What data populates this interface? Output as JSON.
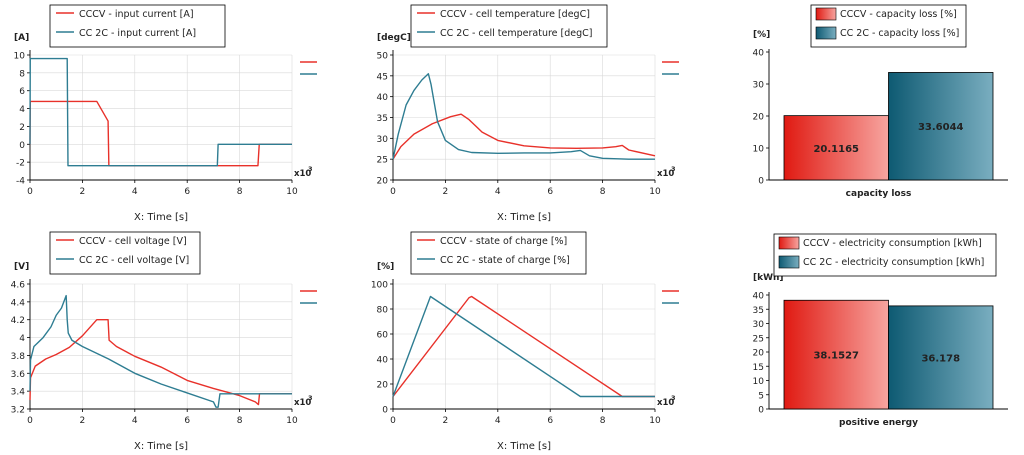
{
  "colors": {
    "cccv": "#e8312a",
    "cc2c": "#2e7d92",
    "axis": "#000000",
    "grid": "#d9d9d9"
  },
  "chart_data": [
    {
      "type": "line",
      "yunit": "[A]",
      "xlabel": "X: Time [s]",
      "xmult": "x10",
      "xexp": "3",
      "xlim": [
        0,
        10
      ],
      "ylim": [
        -4,
        10
      ],
      "xticks": [
        0,
        2,
        4,
        6,
        8,
        10
      ],
      "yticks": [
        -4,
        -2,
        0,
        2,
        4,
        6,
        8,
        10
      ],
      "series": [
        {
          "name": "CCCV - input current [A]",
          "color": "#e8312a",
          "x": [
            0,
            0.01,
            2.55,
            2.98,
            3.01,
            8.7,
            8.75,
            10
          ],
          "y": [
            0,
            4.8,
            4.8,
            2.6,
            -2.4,
            -2.4,
            0,
            0
          ]
        },
        {
          "name": "CC 2C - input current [A]",
          "color": "#2e7d92",
          "x": [
            0,
            0.01,
            1.42,
            1.45,
            7.15,
            7.18,
            10
          ],
          "y": [
            0,
            9.6,
            9.6,
            -2.4,
            -2.4,
            0,
            0
          ]
        }
      ]
    },
    {
      "type": "line",
      "yunit": "[degC]",
      "xlabel": "X: Time [s]",
      "xmult": "x10",
      "xexp": "3",
      "xlim": [
        0,
        10
      ],
      "ylim": [
        20,
        50
      ],
      "xticks": [
        0,
        2,
        4,
        6,
        8,
        10
      ],
      "yticks": [
        20,
        25,
        30,
        35,
        40,
        45,
        50
      ],
      "series": [
        {
          "name": "CCCV - cell temperature [degC]",
          "color": "#e8312a",
          "x": [
            0,
            0.3,
            0.8,
            1.5,
            2.2,
            2.6,
            2.9,
            3.4,
            4.0,
            5.0,
            6.0,
            7.0,
            8.0,
            8.5,
            8.75,
            9.0,
            10
          ],
          "y": [
            25,
            28,
            31,
            33.5,
            35.2,
            35.8,
            34.5,
            31.5,
            29.5,
            28.2,
            27.7,
            27.6,
            27.7,
            28,
            28.3,
            27.2,
            25.8
          ]
        },
        {
          "name": "CC 2C - cell temperature [degC]",
          "color": "#2e7d92",
          "x": [
            0,
            0.2,
            0.5,
            0.8,
            1.1,
            1.35,
            1.45,
            1.7,
            2.0,
            2.5,
            3.0,
            4.0,
            5.0,
            6.0,
            6.8,
            7.15,
            7.5,
            8.0,
            9.0,
            10
          ],
          "y": [
            25,
            31,
            38,
            41.5,
            44,
            45.5,
            43,
            34,
            29.5,
            27.3,
            26.6,
            26.4,
            26.5,
            26.5,
            26.8,
            27.1,
            25.8,
            25.2,
            25,
            25
          ]
        }
      ]
    },
    {
      "type": "bar",
      "yunit": "[%]",
      "title": "capacity loss",
      "ylim": [
        0,
        40
      ],
      "yticks": [
        0,
        10,
        20,
        30,
        40
      ],
      "series": [
        {
          "name": "CCCV - capacity loss [%]",
          "value": 20.1165,
          "label": "20.1165",
          "color": "#e8312a"
        },
        {
          "name": "CC 2C - capacity loss [%]",
          "value": 33.6044,
          "label": "33.6044",
          "color": "#2e7d92"
        }
      ]
    },
    {
      "type": "line",
      "yunit": "[V]",
      "xlabel": "X: Time [s]",
      "xmult": "x10",
      "xexp": "3",
      "xlim": [
        0,
        10
      ],
      "ylim": [
        3.2,
        4.6
      ],
      "xticks": [
        0,
        2,
        4,
        6,
        8,
        10
      ],
      "yticks": [
        3.2,
        3.4,
        3.6,
        3.8,
        4.0,
        4.2,
        4.4,
        4.6
      ],
      "series": [
        {
          "name": "CCCV - cell voltage [V]",
          "color": "#e8312a",
          "x": [
            0,
            0.02,
            0.2,
            0.6,
            1.0,
            1.5,
            2.0,
            2.55,
            2.9,
            2.98,
            3.02,
            3.3,
            4.0,
            5.0,
            6.0,
            7.0,
            8.0,
            8.6,
            8.72,
            8.76,
            10
          ],
          "y": [
            3.3,
            3.55,
            3.68,
            3.76,
            3.81,
            3.89,
            4.02,
            4.2,
            4.2,
            4.2,
            3.97,
            3.9,
            3.79,
            3.67,
            3.52,
            3.43,
            3.35,
            3.28,
            3.25,
            3.37,
            3.37
          ]
        },
        {
          "name": "CC 2C - cell voltage [V]",
          "color": "#2e7d92",
          "x": [
            0,
            0.02,
            0.15,
            0.5,
            0.8,
            1.0,
            1.2,
            1.38,
            1.42,
            1.46,
            1.6,
            2.0,
            3.0,
            4.0,
            5.0,
            6.0,
            7.0,
            7.1,
            7.18,
            7.25,
            10
          ],
          "y": [
            3.4,
            3.75,
            3.9,
            4.0,
            4.12,
            4.25,
            4.33,
            4.47,
            4.2,
            4.05,
            3.97,
            3.9,
            3.76,
            3.6,
            3.48,
            3.38,
            3.28,
            3.22,
            3.22,
            3.37,
            3.37
          ]
        }
      ]
    },
    {
      "type": "line",
      "yunit": "[%]",
      "xlabel": "X: Time [s]",
      "xmult": "x10",
      "xexp": "3",
      "xlim": [
        0,
        10
      ],
      "ylim": [
        0,
        100
      ],
      "xticks": [
        0,
        2,
        4,
        6,
        8,
        10
      ],
      "yticks": [
        0,
        20,
        40,
        60,
        80,
        100
      ],
      "series": [
        {
          "name": "CCCV - state of charge [%]",
          "color": "#e8312a",
          "x": [
            0,
            2.9,
            3.0,
            8.75,
            10
          ],
          "y": [
            10,
            89,
            90,
            10,
            10
          ]
        },
        {
          "name": "CC 2C - state of charge [%]",
          "color": "#2e7d92",
          "x": [
            0,
            1.43,
            7.15,
            10
          ],
          "y": [
            10,
            90,
            10,
            10
          ]
        }
      ]
    },
    {
      "type": "bar",
      "yunit": "[kWh]",
      "title": "positive energy",
      "ylim": [
        0,
        40
      ],
      "yticks": [
        0,
        5,
        10,
        15,
        20,
        25,
        30,
        35,
        40
      ],
      "series": [
        {
          "name": "CCCV - electricity consumption [kWh]",
          "value": 38.1527,
          "label": "38.1527",
          "color": "#e8312a"
        },
        {
          "name": "CC 2C - electricity consumption [kWh]",
          "value": 36.178,
          "label": "36.178",
          "color": "#2e7d92"
        }
      ]
    }
  ]
}
